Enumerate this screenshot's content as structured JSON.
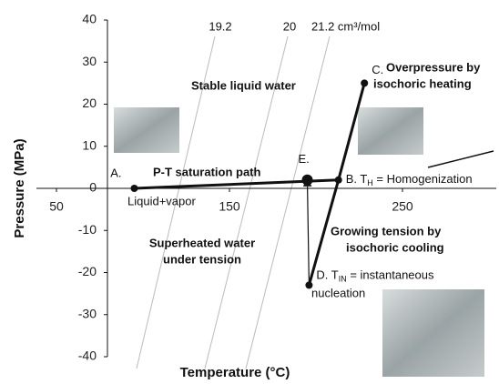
{
  "chart_data": {
    "type": "line",
    "x_label": "Temperature (°C)",
    "y_label": "Pressure (MPa)",
    "xlim": [
      40,
      300
    ],
    "ylim": [
      -40,
      40
    ],
    "xticks": [
      50,
      150,
      250
    ],
    "yticks": [
      -40,
      -30,
      -20,
      -10,
      0,
      10,
      20,
      30,
      40
    ],
    "isochores": [
      "19.2",
      "20",
      "21.2 cm³/mol"
    ],
    "points": [
      {
        "label": "A.",
        "x": 95,
        "y": 0
      },
      {
        "label": "E.",
        "x": 195,
        "y": 2
      },
      {
        "label": {
          "prefix": "B. T",
          "sub": "H",
          "suffix": " = Homogenization"
        },
        "x": 213,
        "y": 2
      },
      {
        "label": "C.",
        "x": 228,
        "y": 25
      },
      {
        "label": {
          "prefix": "D. T",
          "sub": "IN",
          "suffix": " = instantaneous"
        },
        "x": 196,
        "y": -23
      }
    ],
    "annotations": {
      "stable": "Stable liquid water",
      "saturation": "P-T saturation path",
      "liquid_vapor": "Liquid+vapor",
      "overpressure": [
        "Overpressure by",
        "isochoric heating"
      ],
      "superheated": [
        "Superheated water",
        "under tension"
      ],
      "growing": [
        "Growing tension by",
        "isochoric cooling"
      ],
      "nucleation": "nucleation"
    }
  }
}
